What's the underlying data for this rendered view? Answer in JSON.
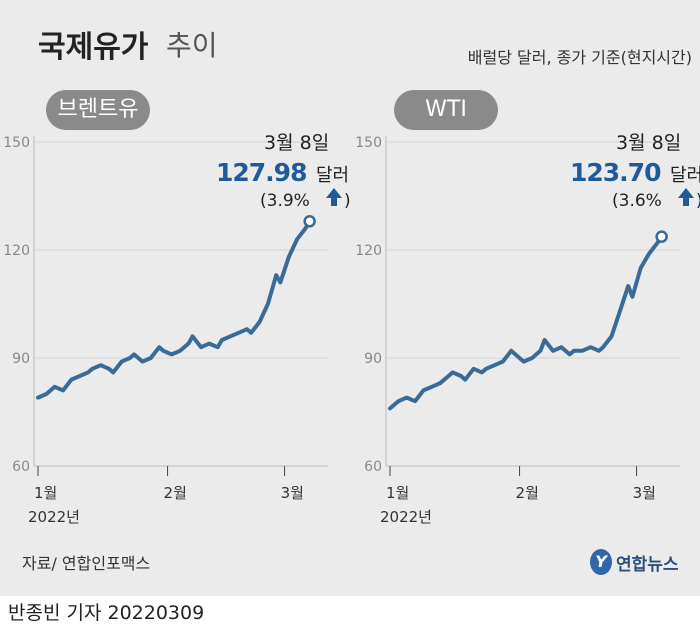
{
  "header": {
    "title_main": "국제유가",
    "title_sub": "추이",
    "unit_note": "배럴당 달러, 종가 기준(현지시간)"
  },
  "footer": {
    "source": "자료/ 연합인포맥스",
    "logo_text": "연합뉴스",
    "byline": "반종빈 기자  20220309"
  },
  "colors": {
    "line": "#3a6a96",
    "value": "#1f5a9a",
    "pill": "#8a8a8a",
    "background": "#ebebeb"
  },
  "chart_data": [
    {
      "type": "line",
      "series_label": "브렌트유",
      "ylim": [
        60,
        150
      ],
      "yticks": [
        "60",
        "90",
        "120",
        "150"
      ],
      "xlim": [
        0,
        67
      ],
      "xticks": [
        {
          "x": 0,
          "label": "1월"
        },
        {
          "x": 31,
          "label": "2월"
        },
        {
          "x": 59,
          "label": "3월"
        }
      ],
      "year_label": "2022년",
      "x": [
        0,
        2,
        4,
        6,
        8,
        10,
        12,
        13,
        15,
        17,
        18,
        20,
        22,
        23,
        25,
        27,
        29,
        30,
        32,
        34,
        36,
        37,
        39,
        41,
        43,
        44,
        46,
        48,
        50,
        51,
        53,
        55,
        57,
        58,
        60,
        62,
        64,
        65
      ],
      "values": [
        79,
        80,
        82,
        81,
        84,
        85,
        86,
        87,
        88,
        87,
        86,
        89,
        90,
        91,
        89,
        90,
        93,
        92,
        91,
        92,
        94,
        96,
        93,
        94,
        93,
        95,
        96,
        97,
        98,
        97,
        100,
        105,
        113,
        111,
        118,
        123,
        126,
        127.98
      ],
      "annotation": {
        "date": "3월 8일",
        "value": "127.98",
        "unit": "달러",
        "change": "(3.9%",
        "arrow": "up-arrow-icon",
        "close": ")"
      }
    },
    {
      "type": "line",
      "series_label": "WTI",
      "ylim": [
        60,
        150
      ],
      "yticks": [
        "60",
        "90",
        "120",
        "150"
      ],
      "xlim": [
        0,
        67
      ],
      "xticks": [
        {
          "x": 0,
          "label": "1월"
        },
        {
          "x": 31,
          "label": "2월"
        },
        {
          "x": 59,
          "label": "3월"
        }
      ],
      "year_label": "2022년",
      "x": [
        0,
        2,
        4,
        6,
        8,
        10,
        12,
        13,
        15,
        17,
        18,
        20,
        22,
        23,
        25,
        27,
        29,
        30,
        32,
        34,
        36,
        37,
        39,
        41,
        43,
        44,
        46,
        48,
        50,
        51,
        53,
        55,
        57,
        58,
        60,
        62,
        64,
        65
      ],
      "values": [
        76,
        78,
        79,
        78,
        81,
        82,
        83,
        84,
        86,
        85,
        84,
        87,
        86,
        87,
        88,
        89,
        92,
        91,
        89,
        90,
        92,
        95,
        92,
        93,
        91,
        92,
        92,
        93,
        92,
        93,
        96,
        103,
        110,
        107,
        115,
        119,
        122,
        123.7
      ],
      "annotation": {
        "date": "3월 8일",
        "value": "123.70",
        "unit": "달러",
        "change": "(3.6%",
        "arrow": "up-arrow-icon",
        "close": ")"
      }
    }
  ]
}
